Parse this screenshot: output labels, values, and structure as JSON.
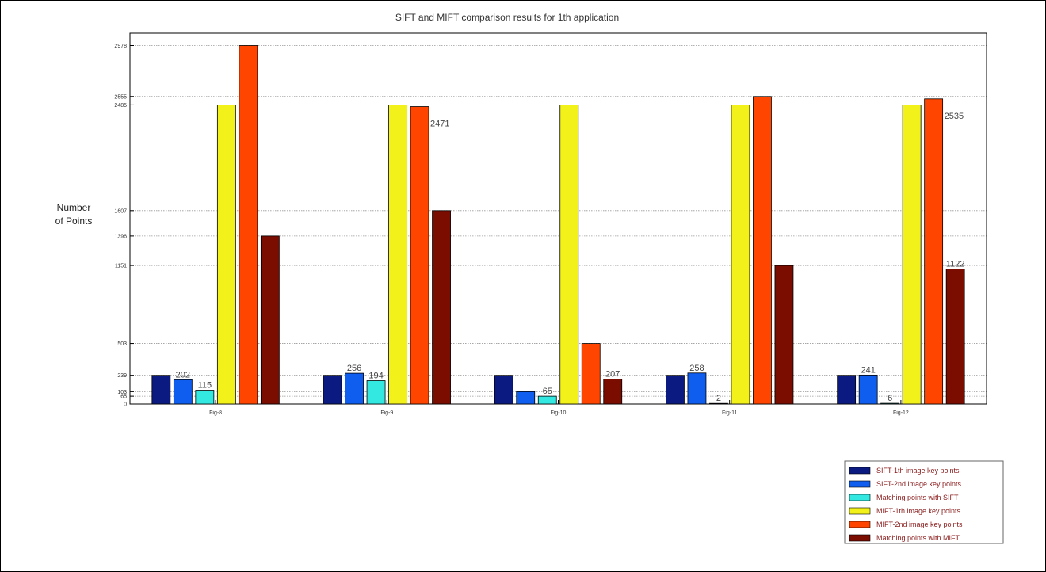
{
  "chart_data": {
    "type": "bar",
    "title": "SIFT and MIFT comparison results for 1th application",
    "ylabel_lines": [
      "Number",
      "of Points"
    ],
    "xlabel": "",
    "categories": [
      "Fig-8",
      "Fig-9",
      "Fig-10",
      "Fig-11",
      "Fig-12"
    ],
    "yticks": [
      0,
      65,
      103,
      239,
      503,
      1151,
      1396,
      1607,
      2485,
      2555,
      2978
    ],
    "ylim": [
      0,
      3080
    ],
    "grid": true,
    "legend_position": "bottom-right",
    "series": [
      {
        "name": "SIFT-1th image key points",
        "color": "#0a1a80",
        "values": [
          239,
          239,
          239,
          239,
          239
        ]
      },
      {
        "name": "SIFT-2nd image key points",
        "color": "#0f5ef0",
        "values": [
          202,
          256,
          103,
          258,
          241
        ]
      },
      {
        "name": "Matching points with SIFT",
        "color": "#33e8e0",
        "values": [
          115,
          194,
          65,
          2,
          6
        ]
      },
      {
        "name": "MIFT-1th image key points",
        "color": "#f2f21a",
        "values": [
          2485,
          2485,
          2485,
          2485,
          2485
        ]
      },
      {
        "name": "MIFT-2nd image key points",
        "color": "#ff4500",
        "values": [
          2978,
          2471,
          503,
          2555,
          2535
        ]
      },
      {
        "name": "Matching points with MIFT",
        "color": "#7a0c00",
        "values": [
          1396,
          1607,
          207,
          1151,
          1122
        ]
      }
    ],
    "data_labels": [
      {
        "category": 0,
        "series": 1,
        "text": "202"
      },
      {
        "category": 0,
        "series": 2,
        "text": "115"
      },
      {
        "category": 1,
        "series": 1,
        "text": "256"
      },
      {
        "category": 1,
        "series": 2,
        "text": "194"
      },
      {
        "category": 1,
        "series": 4,
        "text": "2471"
      },
      {
        "category": 2,
        "series": 2,
        "text": "65"
      },
      {
        "category": 2,
        "series": 5,
        "text": "207"
      },
      {
        "category": 3,
        "series": 1,
        "text": "258"
      },
      {
        "category": 3,
        "series": 2,
        "text": "2"
      },
      {
        "category": 4,
        "series": 1,
        "text": "241"
      },
      {
        "category": 4,
        "series": 2,
        "text": "6"
      },
      {
        "category": 4,
        "series": 4,
        "text": "2535"
      },
      {
        "category": 4,
        "series": 5,
        "text": "1122"
      }
    ]
  }
}
